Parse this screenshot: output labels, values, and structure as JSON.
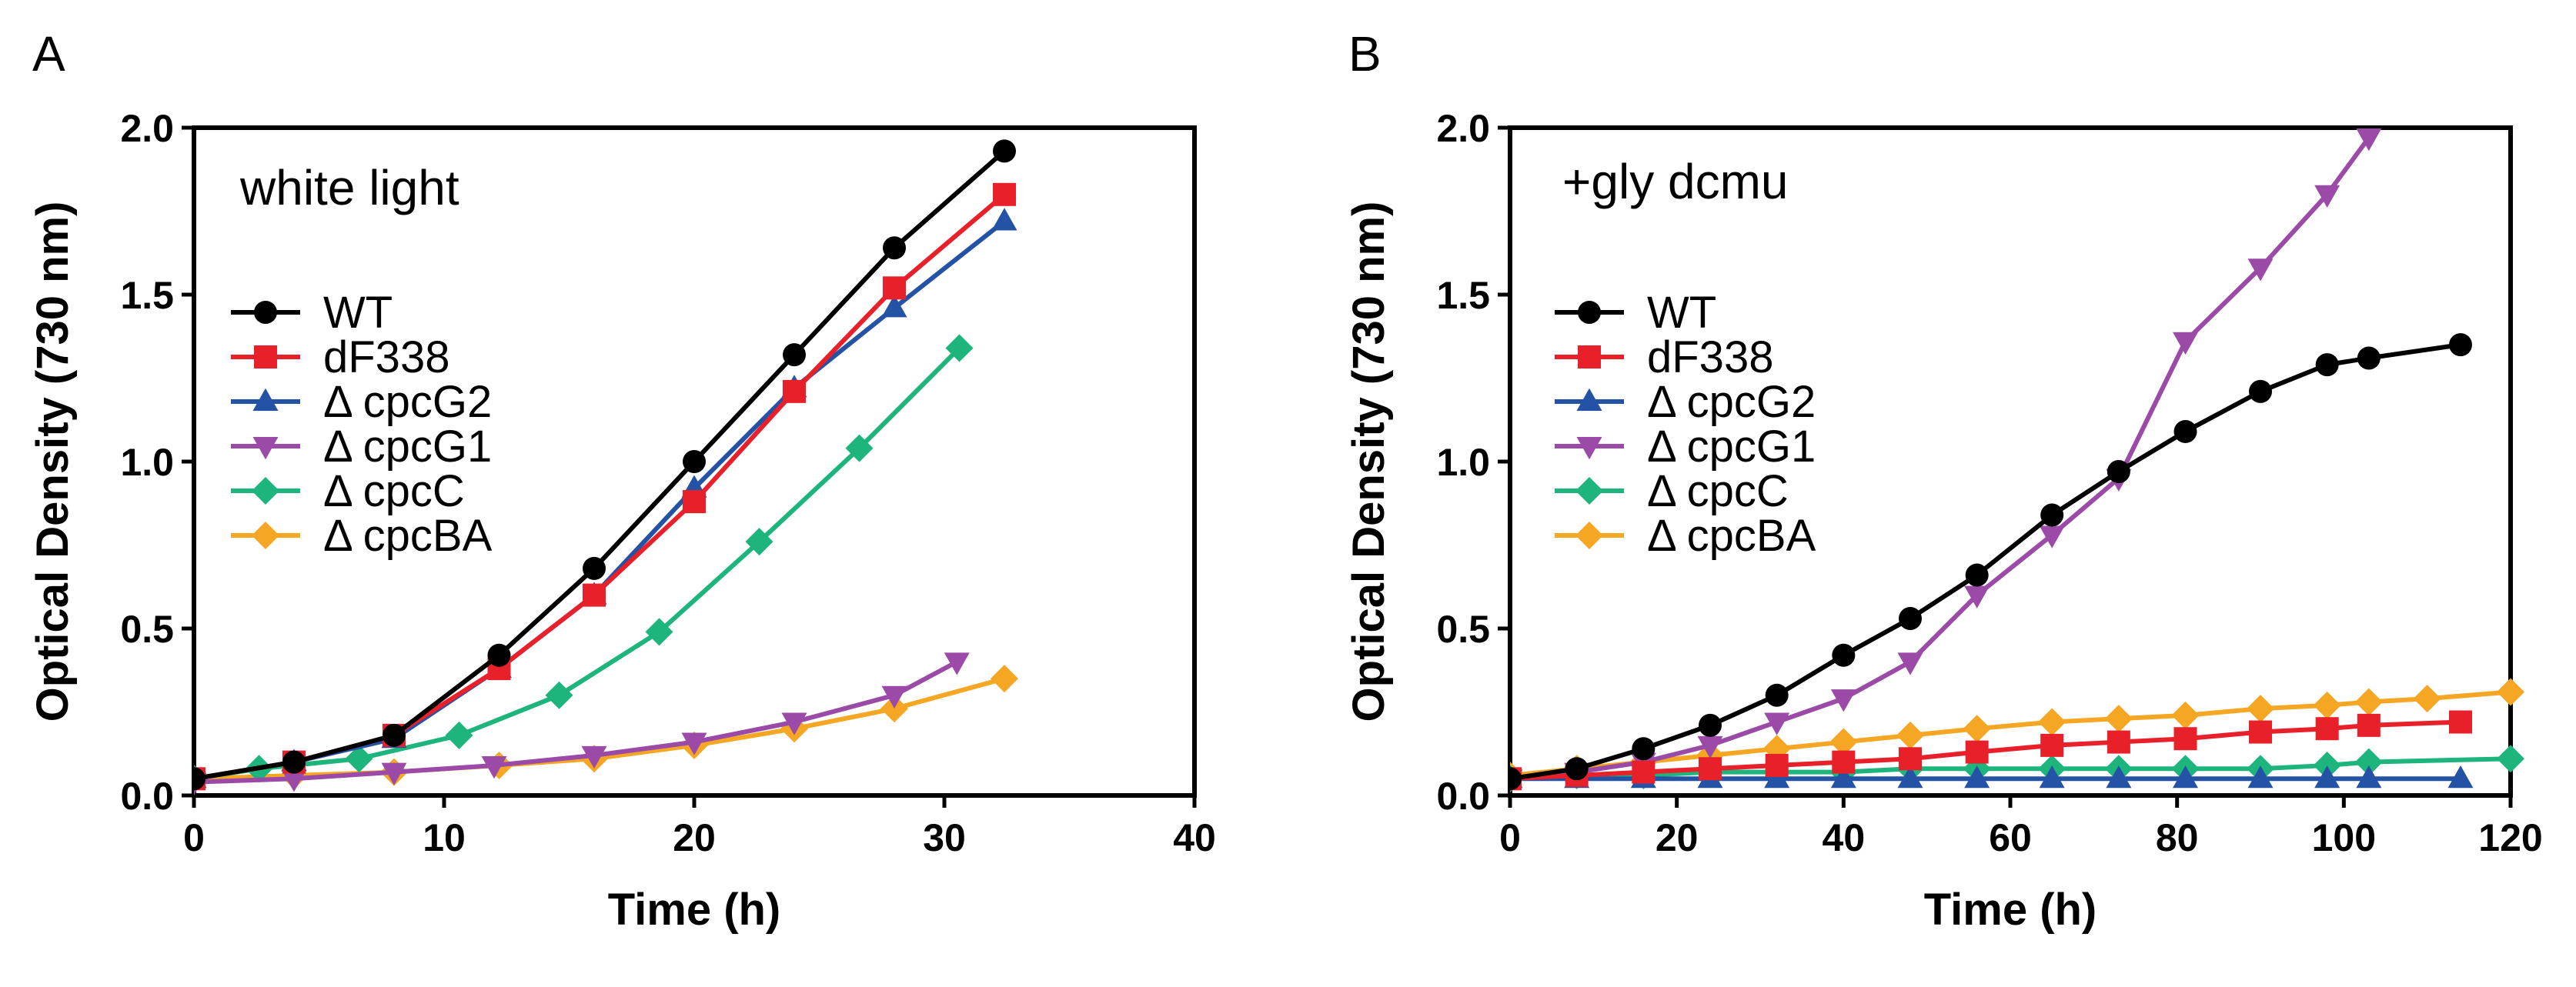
{
  "chart_data": [
    {
      "type": "line",
      "panel_label": "A",
      "annotation": "white light",
      "xlabel": "Time (h)",
      "ylabel": "Optical Density (730 nm)",
      "xlim": [
        0,
        40
      ],
      "ylim": [
        0,
        2.0
      ],
      "xticks": [
        0,
        10,
        20,
        30,
        40
      ],
      "yticks": [
        0.0,
        0.5,
        1.0,
        1.5,
        2.0
      ],
      "xtick_labels": [
        "0",
        "10",
        "20",
        "30",
        "40"
      ],
      "ytick_labels": [
        "0.0",
        "0.5",
        "1.0",
        "1.5",
        "2.0"
      ],
      "grid": false,
      "legend_position": "middle-left",
      "series": [
        {
          "name": "WT",
          "color": "#000000",
          "marker": "circle",
          "x": [
            0,
            4,
            8,
            12.2,
            16,
            20,
            24,
            28,
            32.4
          ],
          "y": [
            0.05,
            0.1,
            0.18,
            0.42,
            0.68,
            1.0,
            1.32,
            1.64,
            1.93
          ]
        },
        {
          "name": "dF338",
          "color": "#e8202a",
          "marker": "square",
          "x": [
            0,
            4,
            8,
            12.2,
            16,
            20,
            24,
            28,
            32.4
          ],
          "y": [
            0.05,
            0.1,
            0.18,
            0.38,
            0.6,
            0.88,
            1.21,
            1.52,
            1.8
          ]
        },
        {
          "name": "Δ cpcG2",
          "color": "#2453a6",
          "marker": "triangle-up",
          "x": [
            0,
            4,
            8,
            12.2,
            16,
            20,
            24,
            28,
            32.4
          ],
          "y": [
            0.05,
            0.1,
            0.17,
            0.38,
            0.6,
            0.92,
            1.22,
            1.46,
            1.72
          ]
        },
        {
          "name": "Δ cpcG1",
          "color": "#9b4aa8",
          "marker": "triangle-down",
          "x": [
            0,
            4,
            8,
            12,
            16,
            20,
            24,
            28,
            30.5
          ],
          "y": [
            0.04,
            0.05,
            0.07,
            0.09,
            0.12,
            0.16,
            0.22,
            0.3,
            0.4
          ]
        },
        {
          "name": "Δ cpcC",
          "color": "#1eb57d",
          "marker": "diamond",
          "x": [
            0,
            2.6,
            6.6,
            10.6,
            14.6,
            18.6,
            22.6,
            26.6,
            30.6
          ],
          "y": [
            0.05,
            0.08,
            0.11,
            0.18,
            0.3,
            0.49,
            0.76,
            1.04,
            1.34
          ]
        },
        {
          "name": "Δ cpcBA",
          "color": "#f5a623",
          "marker": "diamond",
          "x": [
            0,
            4,
            8,
            12.2,
            16,
            20,
            24,
            28,
            32.4
          ],
          "y": [
            0.05,
            0.06,
            0.07,
            0.09,
            0.11,
            0.15,
            0.2,
            0.26,
            0.35
          ]
        }
      ]
    },
    {
      "type": "line",
      "panel_label": "B",
      "annotation": "+gly dcmu",
      "xlabel": "Time (h)",
      "ylabel": "Optical Density (730 nm)",
      "xlim": [
        0,
        120
      ],
      "ylim": [
        0,
        2.0
      ],
      "xticks": [
        0,
        20,
        40,
        60,
        80,
        100,
        120
      ],
      "yticks": [
        0.0,
        0.5,
        1.0,
        1.5,
        2.0
      ],
      "xtick_labels": [
        "0",
        "20",
        "40",
        "60",
        "80",
        "100",
        "120"
      ],
      "ytick_labels": [
        "0.0",
        "0.5",
        "1.0",
        "1.5",
        "2.0"
      ],
      "grid": false,
      "legend_position": "middle-left",
      "series": [
        {
          "name": "WT",
          "color": "#000000",
          "marker": "circle",
          "x": [
            0,
            8,
            16,
            24,
            32,
            40,
            48,
            56,
            65,
            73,
            81,
            90,
            98,
            103,
            114
          ],
          "y": [
            0.05,
            0.08,
            0.14,
            0.21,
            0.3,
            0.42,
            0.53,
            0.66,
            0.84,
            0.97,
            1.09,
            1.21,
            1.29,
            1.31,
            1.35
          ]
        },
        {
          "name": "dF338",
          "color": "#e8202a",
          "marker": "square",
          "x": [
            0,
            8,
            16,
            24,
            32,
            40,
            48,
            56,
            65,
            73,
            81,
            90,
            98,
            103,
            114
          ],
          "y": [
            0.05,
            0.06,
            0.07,
            0.08,
            0.09,
            0.1,
            0.11,
            0.13,
            0.15,
            0.16,
            0.17,
            0.19,
            0.2,
            0.21,
            0.22
          ]
        },
        {
          "name": "Δ cpcG2",
          "color": "#2453a6",
          "marker": "triangle-up",
          "x": [
            0,
            8,
            16,
            24,
            32,
            40,
            48,
            56,
            65,
            73,
            81,
            90,
            98,
            103,
            114
          ],
          "y": [
            0.05,
            0.05,
            0.05,
            0.05,
            0.05,
            0.05,
            0.05,
            0.05,
            0.05,
            0.05,
            0.05,
            0.05,
            0.05,
            0.05,
            0.05
          ]
        },
        {
          "name": "Δ cpcG1",
          "color": "#9b4aa8",
          "marker": "triangle-down",
          "x": [
            0,
            8,
            16,
            24,
            32,
            40,
            48,
            56,
            65,
            73,
            81,
            90,
            98,
            103
          ],
          "y": [
            0.05,
            0.07,
            0.1,
            0.15,
            0.22,
            0.29,
            0.4,
            0.6,
            0.78,
            0.95,
            1.36,
            1.58,
            1.8,
            1.97
          ]
        },
        {
          "name": "Δ cpcC",
          "color": "#1eb57d",
          "marker": "diamond",
          "x": [
            0,
            8,
            16,
            24,
            32,
            40,
            48,
            56,
            65,
            73,
            81,
            90,
            98,
            103,
            120
          ],
          "y": [
            0.05,
            0.06,
            0.06,
            0.07,
            0.07,
            0.07,
            0.08,
            0.08,
            0.08,
            0.08,
            0.08,
            0.08,
            0.09,
            0.1,
            0.11
          ]
        },
        {
          "name": "Δ cpcBA",
          "color": "#f5a623",
          "marker": "diamond",
          "x": [
            0,
            8,
            16,
            24,
            32,
            40,
            48,
            56,
            65,
            73,
            81,
            90,
            98,
            103,
            110,
            120
          ],
          "y": [
            0.06,
            0.08,
            0.1,
            0.12,
            0.14,
            0.16,
            0.18,
            0.2,
            0.22,
            0.23,
            0.24,
            0.26,
            0.27,
            0.28,
            0.29,
            0.31
          ]
        }
      ]
    }
  ]
}
